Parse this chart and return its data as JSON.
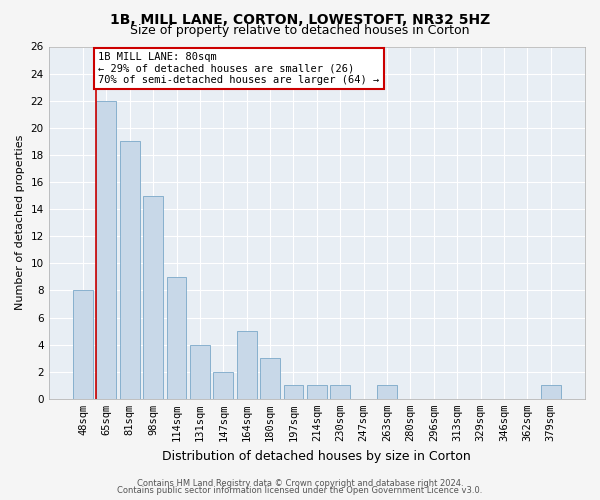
{
  "title1": "1B, MILL LANE, CORTON, LOWESTOFT, NR32 5HZ",
  "title2": "Size of property relative to detached houses in Corton",
  "xlabel": "Distribution of detached houses by size in Corton",
  "ylabel": "Number of detached properties",
  "categories": [
    "48sqm",
    "65sqm",
    "81sqm",
    "98sqm",
    "114sqm",
    "131sqm",
    "147sqm",
    "164sqm",
    "180sqm",
    "197sqm",
    "214sqm",
    "230sqm",
    "247sqm",
    "263sqm",
    "280sqm",
    "296sqm",
    "313sqm",
    "329sqm",
    "346sqm",
    "362sqm",
    "379sqm"
  ],
  "values": [
    8,
    22,
    19,
    15,
    9,
    4,
    2,
    5,
    3,
    1,
    1,
    1,
    0,
    1,
    0,
    0,
    0,
    0,
    0,
    0,
    1
  ],
  "bar_color": "#c8d8e8",
  "bar_edge_color": "#7aa8c8",
  "highlight_bar_index": 1,
  "highlight_line_color": "#cc0000",
  "ylim": [
    0,
    26
  ],
  "yticks": [
    0,
    2,
    4,
    6,
    8,
    10,
    12,
    14,
    16,
    18,
    20,
    22,
    24,
    26
  ],
  "annotation_line1": "1B MILL LANE: 80sqm",
  "annotation_line2": "← 29% of detached houses are smaller (26)",
  "annotation_line3": "70% of semi-detached houses are larger (64) →",
  "annotation_box_color": "#ffffff",
  "annotation_box_edge": "#cc0000",
  "footer1": "Contains HM Land Registry data © Crown copyright and database right 2024.",
  "footer2": "Contains public sector information licensed under the Open Government Licence v3.0.",
  "bg_color": "#e8eef4",
  "grid_color": "#ffffff",
  "fig_bg_color": "#f5f5f5",
  "title1_fontsize": 10,
  "title2_fontsize": 9,
  "xlabel_fontsize": 9,
  "ylabel_fontsize": 8,
  "tick_fontsize": 7.5,
  "annotation_fontsize": 7.5,
  "footer_fontsize": 6
}
